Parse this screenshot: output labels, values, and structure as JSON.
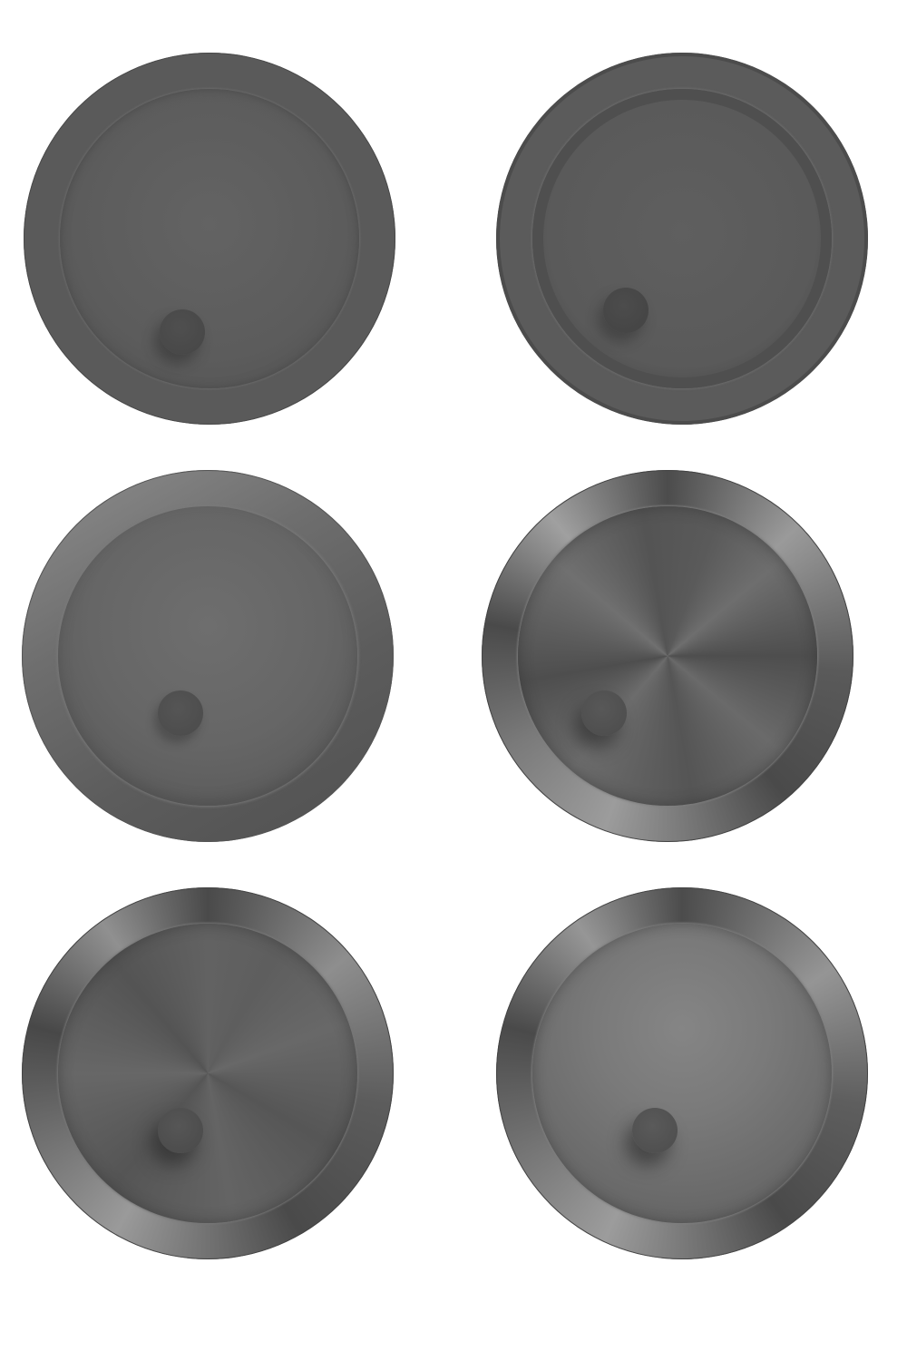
{
  "knobs": [
    {
      "id": "knob-1",
      "style": "flat",
      "rim_color": "#5a5a5a",
      "dial_color": "#5e5e5e",
      "indicator_color": "#4a4a4a"
    },
    {
      "id": "knob-2",
      "style": "recessed-ring",
      "rim_color": "#5b5b5b",
      "dial_color": "#5a5a5a",
      "indicator_color": "#474747"
    },
    {
      "id": "knob-3",
      "style": "bevelled",
      "rim_color": "#6e6e6e",
      "dial_color": "#666666",
      "indicator_color": "#4e4e4e"
    },
    {
      "id": "knob-4",
      "style": "brushed-metal",
      "rim_color": "#7a7a7a",
      "dial_color": "#5e5e5e",
      "indicator_color": "#505050"
    },
    {
      "id": "knob-5",
      "style": "brushed-metal-soft",
      "rim_color": "#707070",
      "dial_color": "#5e5e5e",
      "indicator_color": "#4e4e4e"
    },
    {
      "id": "knob-6",
      "style": "brushed-rim-light-dial",
      "rim_color": "#747474",
      "dial_color": "#7a7a7a",
      "indicator_color": "#525252"
    }
  ],
  "colors": {
    "background": "#ffffff"
  }
}
